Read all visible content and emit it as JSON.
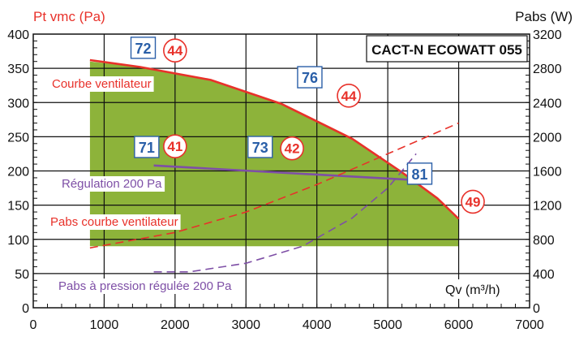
{
  "chart_data": {
    "type": "line",
    "title": "CACT-N ECOWATT 055",
    "ylabel_left": "Pt vmc (Pa)",
    "ylabel_right": "Pabs (W)",
    "xlabel": "Qv (m³/h)",
    "xlim": [
      0,
      7000
    ],
    "ylim_left": [
      0,
      400
    ],
    "ylim_right": [
      0,
      3200
    ],
    "x_ticks": [
      0,
      1000,
      2000,
      3000,
      4000,
      5000,
      6000,
      7000
    ],
    "y_left_ticks": [
      0,
      50,
      100,
      150,
      200,
      250,
      300,
      350,
      400
    ],
    "y_right_ticks": [
      0,
      400,
      800,
      1200,
      1600,
      2000,
      2400,
      2800,
      3200
    ],
    "grid": true,
    "operating_zone": {
      "x": [
        800,
        800,
        1500,
        2500,
        3500,
        4500,
        5200,
        5700,
        6000,
        6000
      ],
      "y": [
        90,
        360,
        352,
        333,
        298,
        247,
        198,
        160,
        130,
        90
      ]
    },
    "series": [
      {
        "name": "Courbe ventilateur",
        "axis": "left",
        "color": "#e8312a",
        "style": "solid",
        "x": [
          800,
          1500,
          2500,
          3500,
          4500,
          5200,
          5700,
          6000
        ],
        "y": [
          362,
          352,
          333,
          298,
          247,
          198,
          160,
          130
        ]
      },
      {
        "name": "Régulation 200 Pa",
        "axis": "left",
        "color": "#7e4fa6",
        "style": "solid",
        "x": [
          1700,
          5500
        ],
        "y": [
          208,
          186
        ]
      },
      {
        "name": "Pabs courbe ventilateur",
        "axis": "right",
        "color": "#e8312a",
        "style": "dashed",
        "x": [
          800,
          2000,
          3000,
          4000,
          5000,
          6000
        ],
        "y": [
          700,
          880,
          1120,
          1440,
          1800,
          2160
        ]
      },
      {
        "name": "Pabs à pression régulée 200 Pa",
        "axis": "right",
        "color": "#7e4fa6",
        "style": "dashed",
        "x": [
          1700,
          2200,
          3000,
          3800,
          4500,
          5000,
          5400
        ],
        "y": [
          420,
          420,
          520,
          720,
          1050,
          1400,
          1800
        ]
      }
    ],
    "boxed_annotations": [
      {
        "text": "72",
        "x": 1550,
        "y": 380
      },
      {
        "text": "76",
        "x": 3900,
        "y": 337
      },
      {
        "text": "71",
        "x": 1600,
        "y": 235
      },
      {
        "text": "73",
        "x": 3200,
        "y": 235
      },
      {
        "text": "81",
        "x": 5450,
        "y": 196
      }
    ],
    "circled_annotations": [
      {
        "text": "44",
        "x": 2000,
        "y": 376
      },
      {
        "text": "44",
        "x": 4450,
        "y": 310
      },
      {
        "text": "41",
        "x": 2000,
        "y": 236
      },
      {
        "text": "42",
        "x": 3650,
        "y": 233
      },
      {
        "text": "49",
        "x": 6200,
        "y": 155
      }
    ]
  }
}
